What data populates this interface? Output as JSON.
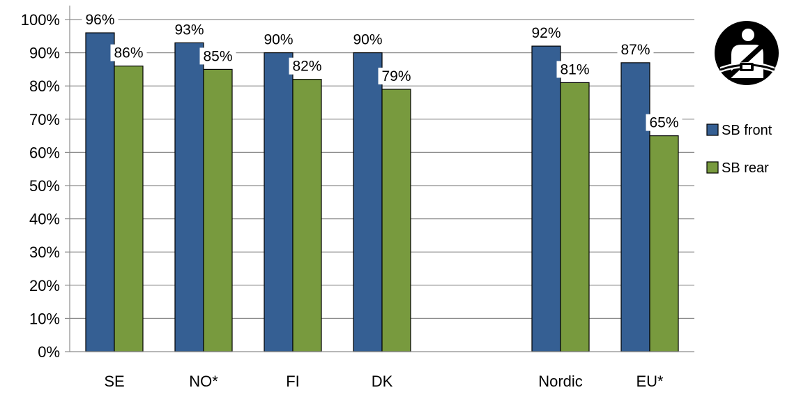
{
  "chart_data": {
    "type": "bar",
    "categories": [
      "SE",
      "NO*",
      "FI",
      "DK",
      "",
      "Nordic",
      "EU*"
    ],
    "series": [
      {
        "name": "SB front",
        "values": [
          96,
          93,
          90,
          90,
          null,
          92,
          87
        ],
        "labels": [
          "96%",
          "93%",
          "90%",
          "90%",
          "",
          "92%",
          "87%"
        ]
      },
      {
        "name": "SB rear",
        "values": [
          86,
          85,
          82,
          79,
          null,
          81,
          65
        ],
        "labels": [
          "86%",
          "85%",
          "82%",
          "79%",
          "",
          "81%",
          "65%"
        ]
      }
    ],
    "y_ticks": [
      "0%",
      "10%",
      "20%",
      "30%",
      "40%",
      "50%",
      "60%",
      "70%",
      "80%",
      "90%",
      "100%"
    ],
    "ylim": [
      0,
      100
    ],
    "grid": true,
    "legend_position": "right",
    "title": "",
    "xlabel": "",
    "ylabel": ""
  },
  "colors": {
    "front": "#355f93",
    "rear": "#789a3e",
    "grid": "#8c8c8c",
    "icon_bg": "#000000",
    "icon_fg": "#ffffff"
  },
  "icon": {
    "name": "seatbelt-icon"
  }
}
